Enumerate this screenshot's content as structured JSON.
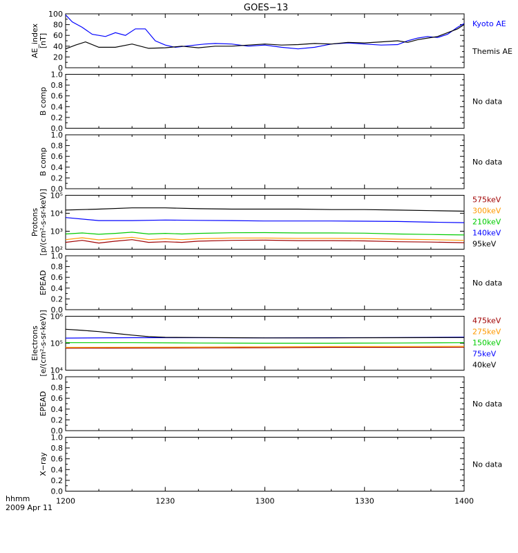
{
  "title": "GOES−13",
  "time_axis": {
    "corner_label_line1": "hhmm",
    "corner_label_line2": "2009 Apr 11",
    "tick_labels": [
      "1200",
      "1230",
      "1300",
      "1330",
      "1400"
    ]
  },
  "colors": {
    "black": "#000000",
    "blue": "#0000ff",
    "green": "#00cc00",
    "orange": "#ff9900",
    "darkred": "#a00000"
  },
  "chart_data": [
    {
      "type": "line",
      "ylabel": [
        "AE_index",
        "[nT]"
      ],
      "ylim": [
        0,
        100
      ],
      "x_range": [
        0,
        120
      ],
      "y_ticks": [
        "0",
        "20",
        "40",
        "60",
        "80",
        "100"
      ],
      "series": [
        {
          "name": "Kyoto AE",
          "color": "#0000ff",
          "x": [
            0,
            2,
            5,
            8,
            12,
            15,
            18,
            21,
            24,
            27,
            30,
            33,
            36,
            39,
            42,
            45,
            50,
            55,
            60,
            65,
            70,
            75,
            80,
            85,
            90,
            95,
            100,
            103,
            106,
            109,
            112,
            115,
            118,
            120
          ],
          "y": [
            98,
            85,
            75,
            62,
            58,
            65,
            60,
            72,
            72,
            50,
            42,
            38,
            40,
            42,
            44,
            45,
            44,
            40,
            42,
            38,
            35,
            38,
            44,
            46,
            44,
            42,
            43,
            50,
            55,
            58,
            56,
            62,
            75,
            82
          ]
        },
        {
          "name": "Themis AE",
          "color": "#000000",
          "x": [
            0,
            3,
            6,
            10,
            15,
            20,
            25,
            30,
            35,
            40,
            45,
            50,
            55,
            60,
            65,
            70,
            75,
            80,
            85,
            90,
            95,
            100,
            103,
            106,
            109,
            112,
            115,
            118,
            120
          ],
          "y": [
            35,
            42,
            48,
            38,
            38,
            44,
            36,
            37,
            40,
            37,
            40,
            40,
            42,
            44,
            42,
            43,
            45,
            44,
            47,
            46,
            48,
            50,
            47,
            52,
            55,
            58,
            65,
            72,
            80
          ]
        }
      ],
      "right_legend": [
        "Kyoto AE",
        "Themis AE"
      ]
    },
    {
      "type": "line",
      "ylabel": [
        "B comp"
      ],
      "ylim": [
        0,
        1
      ],
      "y_ticks": [
        "0.0",
        "0.2",
        "0.4",
        "0.6",
        "0.8",
        "1.0"
      ],
      "series": [],
      "status": "No data"
    },
    {
      "type": "line",
      "ylabel": [
        "B comp"
      ],
      "ylim": [
        0,
        1
      ],
      "y_ticks": [
        "0.0",
        "0.2",
        "0.4",
        "0.6",
        "0.8",
        "1.0"
      ],
      "series": [],
      "status": "No data"
    },
    {
      "type": "line",
      "ylabel": [
        "Protons",
        "[p/(cm²-s-sr-keV)]"
      ],
      "ylim": [
        100,
        100000
      ],
      "log_scale": true,
      "x_range": [
        0,
        120
      ],
      "y_tick_values": [
        100,
        1000,
        10000,
        100000
      ],
      "y_ticks": [
        "10²",
        "10³",
        "10⁴",
        "10⁵"
      ],
      "series": [
        {
          "name": "575keV",
          "color": "#a00000",
          "x": [
            0,
            5,
            10,
            15,
            20,
            25,
            30,
            35,
            40,
            50,
            60,
            70,
            80,
            90,
            100,
            110,
            120
          ],
          "y": [
            240,
            310,
            220,
            280,
            340,
            240,
            260,
            240,
            280,
            310,
            320,
            300,
            300,
            290,
            260,
            250,
            230
          ]
        },
        {
          "name": "300keV",
          "color": "#ff9900",
          "x": [
            0,
            5,
            10,
            15,
            20,
            25,
            30,
            35,
            40,
            50,
            60,
            70,
            80,
            90,
            100,
            110,
            120
          ],
          "y": [
            340,
            430,
            330,
            390,
            460,
            340,
            380,
            340,
            380,
            420,
            420,
            400,
            400,
            390,
            360,
            340,
            310
          ]
        },
        {
          "name": "210keV",
          "color": "#00cc00",
          "x": [
            0,
            5,
            10,
            15,
            20,
            25,
            30,
            35,
            40,
            50,
            60,
            70,
            80,
            90,
            100,
            110,
            120
          ],
          "y": [
            700,
            800,
            680,
            760,
            880,
            700,
            760,
            700,
            760,
            820,
            840,
            800,
            800,
            780,
            700,
            660,
            620
          ]
        },
        {
          "name": "140keV",
          "color": "#0000ff",
          "x": [
            0,
            10,
            20,
            30,
            40,
            50,
            60,
            70,
            80,
            90,
            100,
            110,
            120
          ],
          "y": [
            5800,
            3900,
            3900,
            4200,
            4000,
            3900,
            3700,
            3700,
            3700,
            3600,
            3500,
            3200,
            3000
          ]
        },
        {
          "name": "95keV",
          "color": "#000000",
          "x": [
            0,
            10,
            20,
            30,
            40,
            50,
            60,
            70,
            80,
            90,
            100,
            110,
            120
          ],
          "y": [
            15000,
            17000,
            20000,
            20000,
            18000,
            17000,
            17000,
            17000,
            16000,
            16000,
            15000,
            14000,
            13000
          ]
        }
      ],
      "right_legend": [
        "575keV",
        "300keV",
        "210keV",
        "140keV",
        "95keV"
      ]
    },
    {
      "type": "line",
      "ylabel": [
        "EPEAD"
      ],
      "ylim": [
        0,
        1
      ],
      "y_ticks": [
        "0.0",
        "0.2",
        "0.4",
        "0.6",
        "0.8",
        "1.0"
      ],
      "series": [],
      "status": "No data"
    },
    {
      "type": "line",
      "ylabel": [
        "Electrons",
        "[e/(cm²-s-sr-keV)]"
      ],
      "ylim": [
        10000,
        1000000
      ],
      "log_scale": true,
      "x_range": [
        0,
        120
      ],
      "y_tick_values": [
        10000,
        100000,
        1000000
      ],
      "y_ticks": [
        "10⁴",
        "10⁵",
        "10⁶"
      ],
      "series": [
        {
          "name": "475keV",
          "color": "#a00000",
          "x": [
            0,
            20,
            40,
            60,
            80,
            100,
            120
          ],
          "y": [
            65000,
            66000,
            67000,
            68000,
            70000,
            70000,
            71000
          ]
        },
        {
          "name": "275keV",
          "color": "#ff9900",
          "x": [
            0,
            20,
            40,
            60,
            80,
            100,
            120
          ],
          "y": [
            70000,
            71000,
            72000,
            73000,
            75000,
            75000,
            76000
          ]
        },
        {
          "name": "150keV",
          "color": "#00cc00",
          "x": [
            0,
            20,
            40,
            60,
            80,
            100,
            120
          ],
          "y": [
            105000,
            105000,
            102000,
            100000,
            100000,
            102000,
            105000
          ]
        },
        {
          "name": "75keV",
          "color": "#0000ff",
          "x": [
            0,
            20,
            40,
            60,
            80,
            100,
            120
          ],
          "y": [
            155000,
            160000,
            160000,
            158000,
            160000,
            162000,
            168000
          ]
        },
        {
          "name": "40keV",
          "color": "#000000",
          "x": [
            0,
            5,
            10,
            15,
            20,
            25,
            30,
            40,
            50,
            60,
            80,
            100,
            120
          ],
          "y": [
            330000,
            300000,
            270000,
            230000,
            200000,
            175000,
            165000,
            162000,
            160000,
            158000,
            158000,
            160000,
            162000
          ]
        }
      ],
      "right_legend": [
        "475keV",
        "275keV",
        "150keV",
        "75keV",
        "40keV"
      ]
    },
    {
      "type": "line",
      "ylabel": [
        "EPEAD"
      ],
      "ylim": [
        0,
        1
      ],
      "y_ticks": [
        "0.0",
        "0.2",
        "0.4",
        "0.6",
        "0.8",
        "1.0"
      ],
      "series": [],
      "status": "No data"
    },
    {
      "type": "line",
      "ylabel": [
        "X−ray"
      ],
      "ylim": [
        0,
        1
      ],
      "y_ticks": [
        "0.0",
        "0.2",
        "0.4",
        "0.6",
        "0.8",
        "1.0"
      ],
      "series": [],
      "status": "No data"
    }
  ]
}
